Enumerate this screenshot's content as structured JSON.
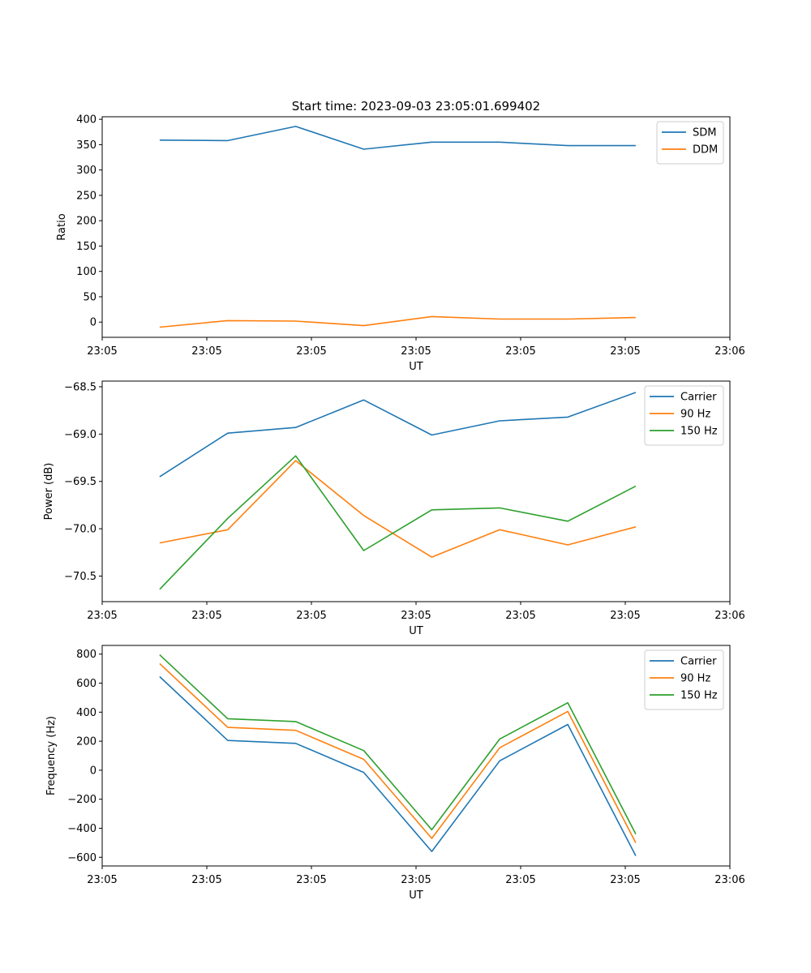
{
  "figure_title": "Start time: 2023-09-03 23:05:01.699402",
  "chart_data": [
    {
      "type": "line",
      "title": "Start time: 2023-09-03 23:05:01.699402",
      "xlabel": "UT",
      "ylabel": "Ratio",
      "x": [
        0.55,
        1.2,
        1.85,
        2.5,
        3.15,
        3.8,
        4.45,
        5.1
      ],
      "xlim": [
        0,
        6
      ],
      "xticks": [
        0,
        1,
        2,
        3,
        4,
        5,
        6
      ],
      "xtick_labels": [
        "23:05",
        "23:05",
        "23:05",
        "23:05",
        "23:05",
        "23:05",
        "23:06"
      ],
      "ylim": [
        -30,
        405
      ],
      "yticks": [
        0,
        50,
        100,
        150,
        200,
        250,
        300,
        350,
        400
      ],
      "ytick_labels": [
        "0",
        "50",
        "100",
        "150",
        "200",
        "250",
        "300",
        "350",
        "400"
      ],
      "legend_position": "top-right",
      "series": [
        {
          "name": "SDM",
          "color": "#1f77b4",
          "values": [
            359,
            358,
            386,
            341,
            355,
            355,
            348,
            348
          ]
        },
        {
          "name": "DDM",
          "color": "#ff7f0e",
          "values": [
            -10,
            3,
            2,
            -7,
            11,
            6,
            6,
            9
          ]
        }
      ]
    },
    {
      "type": "line",
      "title": "",
      "xlabel": "UT",
      "ylabel": "Power (dB)",
      "x": [
        0.55,
        1.2,
        1.85,
        2.5,
        3.15,
        3.8,
        4.45,
        5.1
      ],
      "xlim": [
        0,
        6
      ],
      "xticks": [
        0,
        1,
        2,
        3,
        4,
        5,
        6
      ],
      "xtick_labels": [
        "23:05",
        "23:05",
        "23:05",
        "23:05",
        "23:05",
        "23:05",
        "23:06"
      ],
      "ylim": [
        -70.77,
        -68.44
      ],
      "yticks": [
        -70.5,
        -70.0,
        -69.5,
        -69.0,
        -68.5
      ],
      "ytick_labels": [
        "−70.5",
        "−70.0",
        "−69.5",
        "−69.0",
        "−68.5"
      ],
      "legend_position": "top-right",
      "series": [
        {
          "name": "Carrier",
          "color": "#1f77b4",
          "values": [
            -69.45,
            -68.99,
            -68.93,
            -68.64,
            -69.01,
            -68.86,
            -68.82,
            -68.56
          ]
        },
        {
          "name": "90 Hz",
          "color": "#ff7f0e",
          "values": [
            -70.15,
            -70.01,
            -69.28,
            -69.86,
            -70.3,
            -70.01,
            -70.17,
            -69.98
          ]
        },
        {
          "name": "150 Hz",
          "color": "#2ca02c",
          "values": [
            -70.64,
            -69.89,
            -69.23,
            -70.23,
            -69.8,
            -69.78,
            -69.92,
            -69.55
          ]
        }
      ]
    },
    {
      "type": "line",
      "title": "",
      "xlabel": "UT",
      "ylabel": "Frequency (Hz)",
      "x": [
        0.55,
        1.2,
        1.85,
        2.5,
        3.15,
        3.8,
        4.45,
        5.1
      ],
      "xlim": [
        0,
        6
      ],
      "xticks": [
        0,
        1,
        2,
        3,
        4,
        5,
        6
      ],
      "xtick_labels": [
        "23:05",
        "23:05",
        "23:05",
        "23:05",
        "23:05",
        "23:05",
        "23:06"
      ],
      "ylim": [
        -660,
        860
      ],
      "yticks": [
        -600,
        -400,
        -200,
        0,
        200,
        400,
        600,
        800
      ],
      "ytick_labels": [
        "−600",
        "−400",
        "−200",
        "0",
        "200",
        "400",
        "600",
        "800"
      ],
      "legend_position": "top-right",
      "series": [
        {
          "name": "Carrier",
          "color": "#1f77b4",
          "values": [
            645,
            205,
            185,
            -15,
            -560,
            65,
            315,
            -590
          ]
        },
        {
          "name": "90 Hz",
          "color": "#ff7f0e",
          "values": [
            735,
            295,
            275,
            75,
            -470,
            155,
            405,
            -500
          ]
        },
        {
          "name": "150 Hz",
          "color": "#2ca02c",
          "values": [
            795,
            355,
            335,
            135,
            -410,
            215,
            465,
            -440
          ]
        }
      ]
    }
  ]
}
